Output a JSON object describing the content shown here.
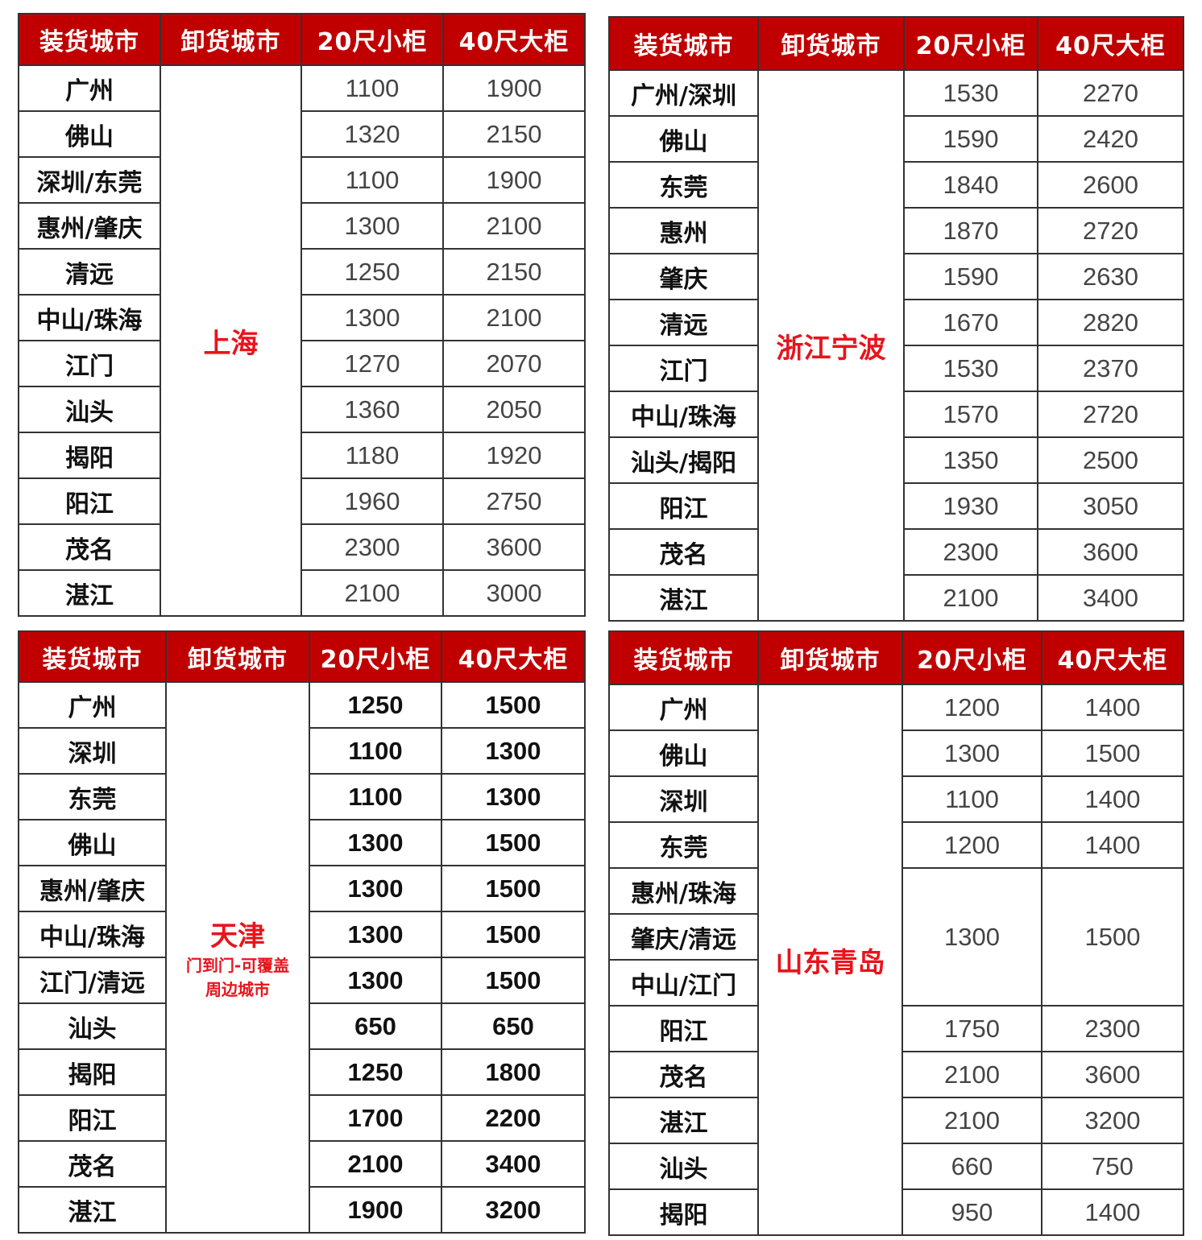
{
  "header": [
    "装货城市",
    "卸货城市",
    "20尺小柜",
    "40尺大柜"
  ],
  "tables": [
    {
      "destination": "上海",
      "groups": [
        {
          "origins": [
            "广州"
          ],
          "p20": "1100",
          "p40": "1900"
        },
        {
          "origins": [
            "佛山"
          ],
          "p20": "1320",
          "p40": "2150"
        },
        {
          "origins": [
            "深圳/东莞"
          ],
          "p20": "1100",
          "p40": "1900"
        },
        {
          "origins": [
            "惠州/肇庆"
          ],
          "p20": "1300",
          "p40": "2100"
        },
        {
          "origins": [
            "清远"
          ],
          "p20": "1250",
          "p40": "2150"
        },
        {
          "origins": [
            "中山/珠海"
          ],
          "p20": "1300",
          "p40": "2100"
        },
        {
          "origins": [
            "江门"
          ],
          "p20": "1270",
          "p40": "2070"
        },
        {
          "origins": [
            "汕头"
          ],
          "p20": "1360",
          "p40": "2050"
        },
        {
          "origins": [
            "揭阳"
          ],
          "p20": "1180",
          "p40": "1920"
        },
        {
          "origins": [
            "阳江"
          ],
          "p20": "1960",
          "p40": "2750"
        },
        {
          "origins": [
            "茂名"
          ],
          "p20": "2300",
          "p40": "3600"
        },
        {
          "origins": [
            "湛江"
          ],
          "p20": "2100",
          "p40": "3000"
        }
      ]
    },
    {
      "destination": "浙江宁波",
      "groups": [
        {
          "origins": [
            "广州/深圳"
          ],
          "p20": "1530",
          "p40": "2270"
        },
        {
          "origins": [
            "佛山"
          ],
          "p20": "1590",
          "p40": "2420"
        },
        {
          "origins": [
            "东莞"
          ],
          "p20": "1840",
          "p40": "2600"
        },
        {
          "origins": [
            "惠州"
          ],
          "p20": "1870",
          "p40": "2720"
        },
        {
          "origins": [
            "肇庆"
          ],
          "p20": "1590",
          "p40": "2630"
        },
        {
          "origins": [
            "清远"
          ],
          "p20": "1670",
          "p40": "2820"
        },
        {
          "origins": [
            "江门"
          ],
          "p20": "1530",
          "p40": "2370"
        },
        {
          "origins": [
            "中山/珠海"
          ],
          "p20": "1570",
          "p40": "2720"
        },
        {
          "origins": [
            "汕头/揭阳"
          ],
          "p20": "1350",
          "p40": "2500"
        },
        {
          "origins": [
            "阳江"
          ],
          "p20": "1930",
          "p40": "3050"
        },
        {
          "origins": [
            "茂名"
          ],
          "p20": "2300",
          "p40": "3600"
        },
        {
          "origins": [
            "湛江"
          ],
          "p20": "2100",
          "p40": "3400"
        }
      ]
    },
    {
      "destination": "天津",
      "destination_note": [
        "门到门-可覆盖",
        "周边城市"
      ],
      "groups": [
        {
          "origins": [
            "广州"
          ],
          "p20": "1250",
          "p40": "1500"
        },
        {
          "origins": [
            "深圳"
          ],
          "p20": "1100",
          "p40": "1300"
        },
        {
          "origins": [
            "东莞"
          ],
          "p20": "1100",
          "p40": "1300"
        },
        {
          "origins": [
            "佛山"
          ],
          "p20": "1300",
          "p40": "1500"
        },
        {
          "origins": [
            "惠州/肇庆"
          ],
          "p20": "1300",
          "p40": "1500"
        },
        {
          "origins": [
            "中山/珠海"
          ],
          "p20": "1300",
          "p40": "1500"
        },
        {
          "origins": [
            "江门/清远"
          ],
          "p20": "1300",
          "p40": "1500"
        },
        {
          "origins": [
            "汕头"
          ],
          "p20": "650",
          "p40": "650"
        },
        {
          "origins": [
            "揭阳"
          ],
          "p20": "1250",
          "p40": "1800"
        },
        {
          "origins": [
            "阳江"
          ],
          "p20": "1700",
          "p40": "2200"
        },
        {
          "origins": [
            "茂名"
          ],
          "p20": "2100",
          "p40": "3400"
        },
        {
          "origins": [
            "湛江"
          ],
          "p20": "1900",
          "p40": "3200"
        }
      ]
    },
    {
      "destination": "山东青岛",
      "groups": [
        {
          "origins": [
            "广州"
          ],
          "p20": "1200",
          "p40": "1400"
        },
        {
          "origins": [
            "佛山"
          ],
          "p20": "1300",
          "p40": "1500"
        },
        {
          "origins": [
            "深圳"
          ],
          "p20": "1100",
          "p40": "1400"
        },
        {
          "origins": [
            "东莞"
          ],
          "p20": "1200",
          "p40": "1400"
        },
        {
          "origins": [
            "惠州/珠海",
            "肇庆/清远",
            "中山/江门"
          ],
          "p20": "1300",
          "p40": "1500"
        },
        {
          "origins": [
            "阳江"
          ],
          "p20": "1750",
          "p40": "2300"
        },
        {
          "origins": [
            "茂名"
          ],
          "p20": "2100",
          "p40": "3600"
        },
        {
          "origins": [
            "湛江"
          ],
          "p20": "2100",
          "p40": "3200"
        },
        {
          "origins": [
            "汕头"
          ],
          "p20": "660",
          "p40": "750"
        },
        {
          "origins": [
            "揭阳"
          ],
          "p20": "950",
          "p40": "1400"
        }
      ]
    }
  ],
  "colors": {
    "header_bg": "#c00000",
    "destination_text": "#e8141b"
  }
}
